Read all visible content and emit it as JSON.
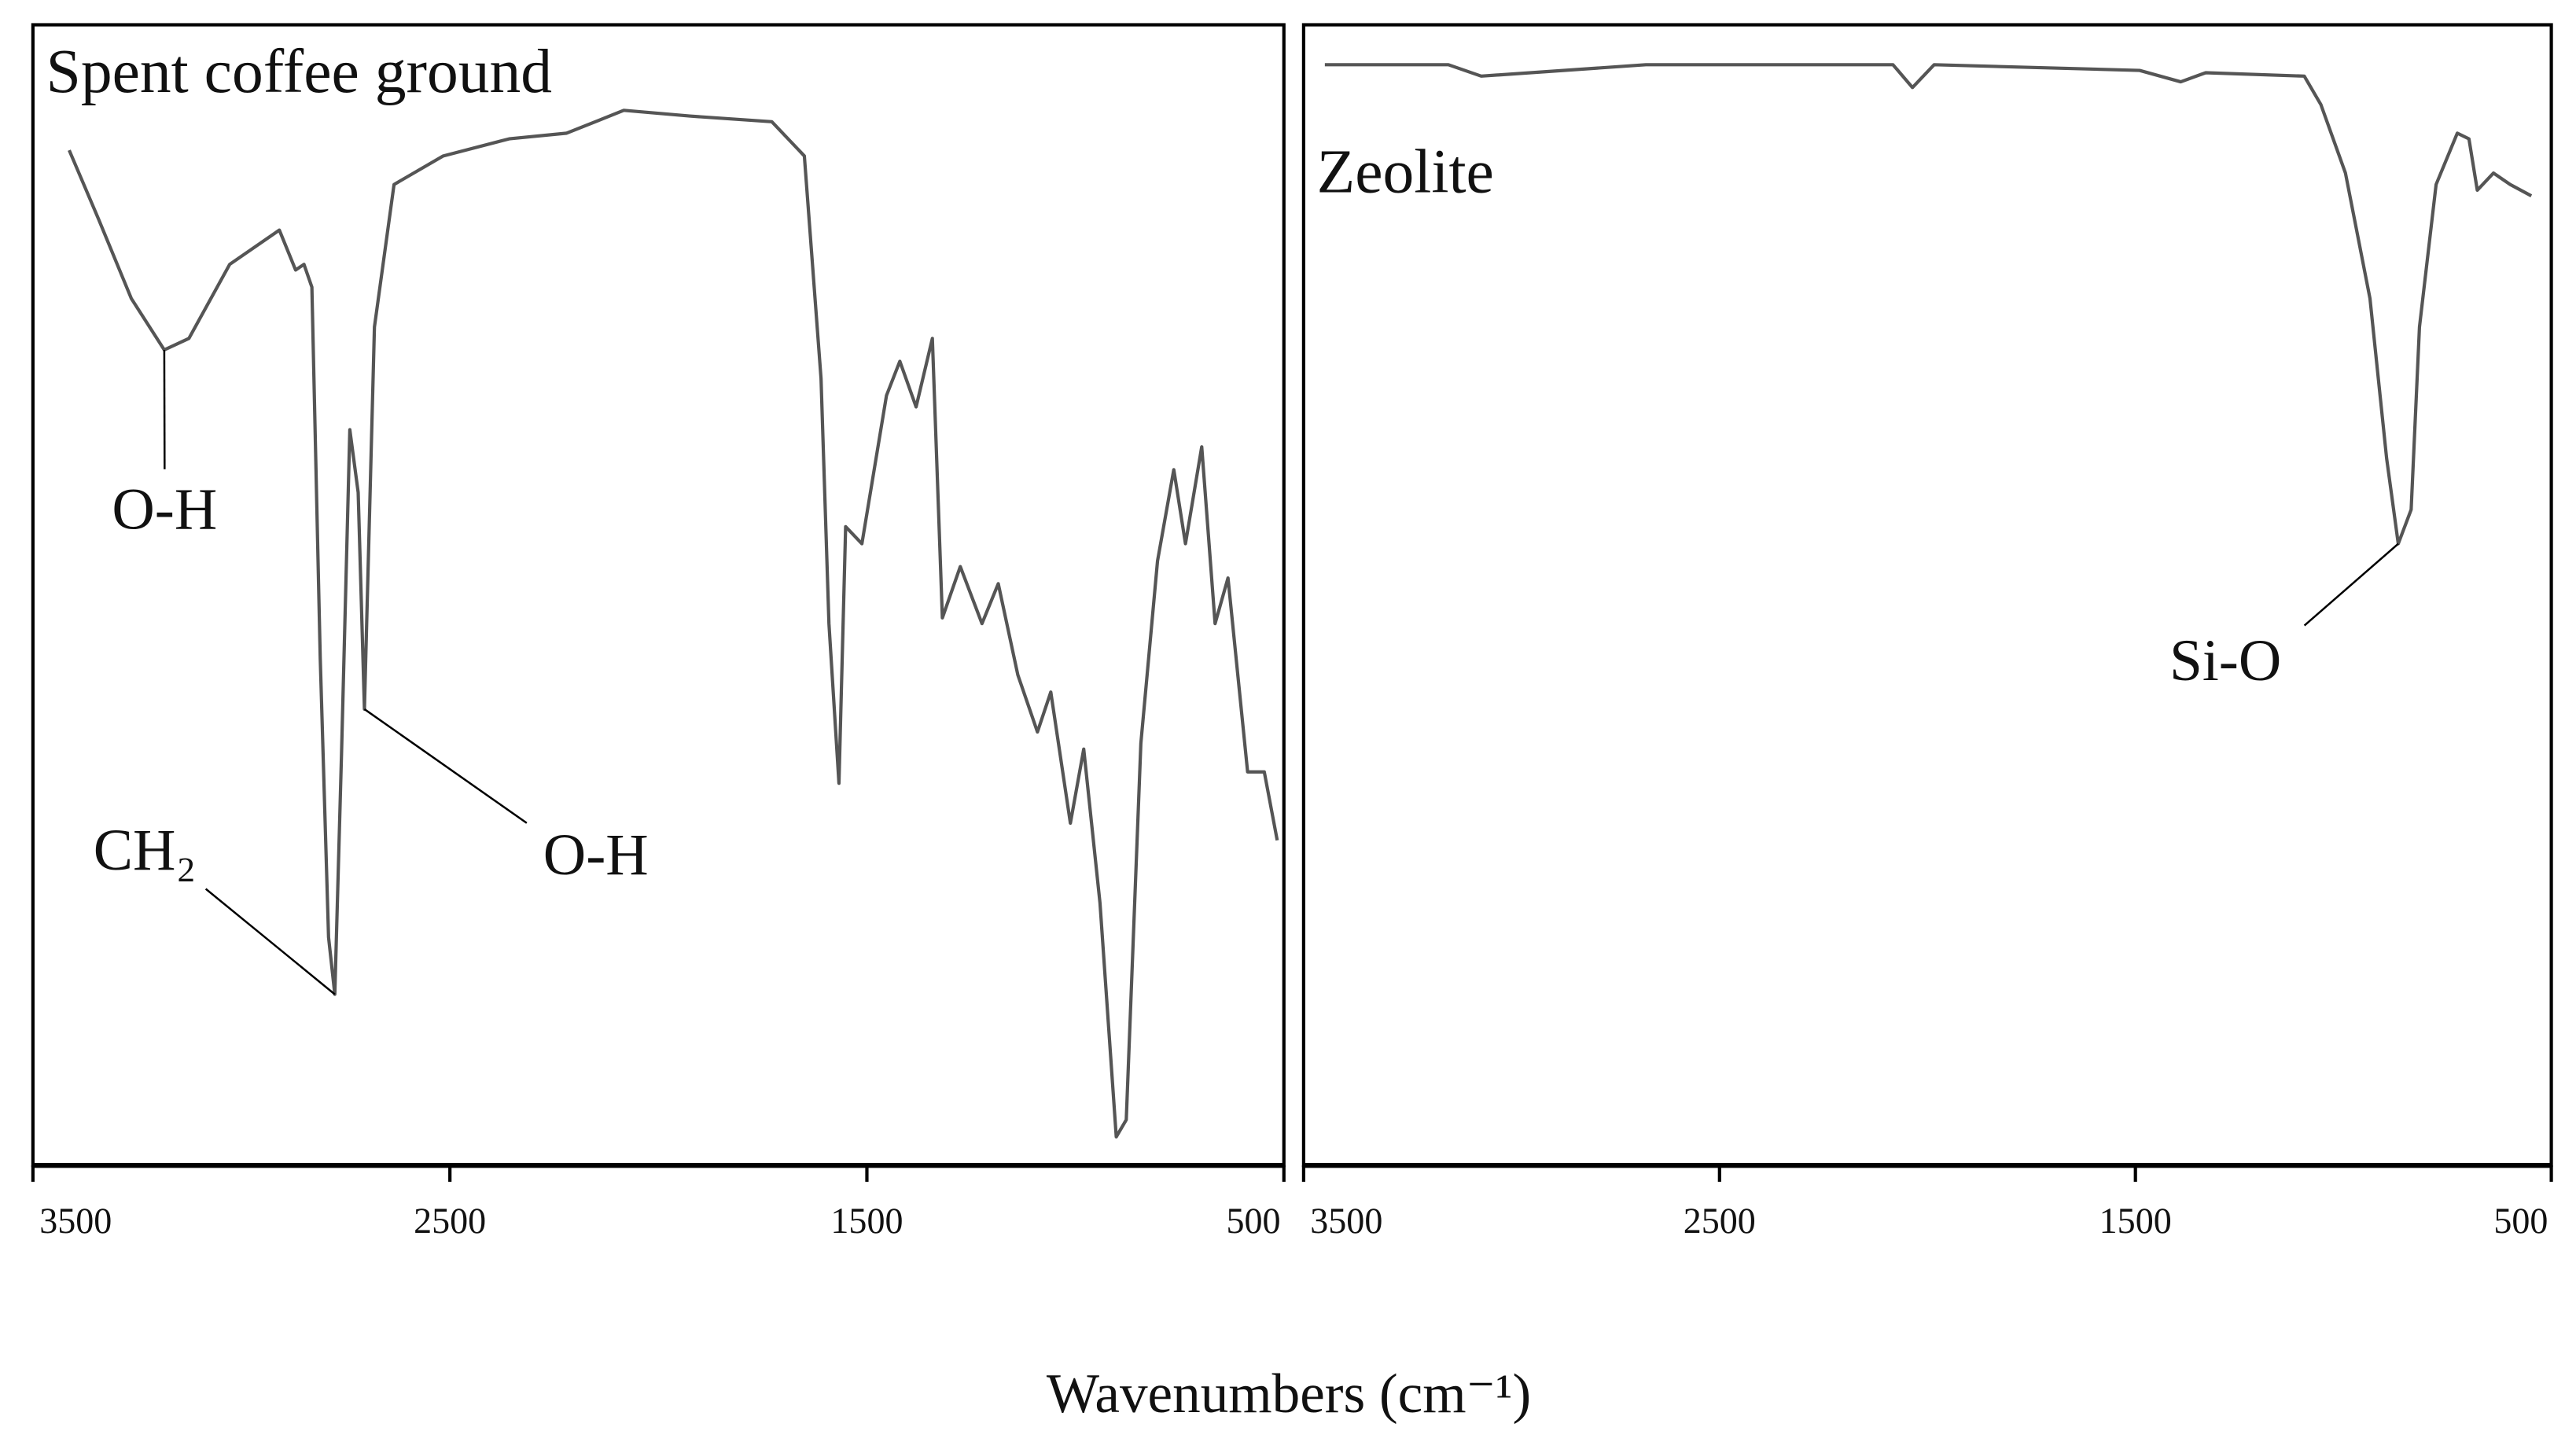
{
  "chart_data": [
    {
      "type": "line",
      "title": "Spent coffee ground",
      "color": "#555555",
      "x": [
        3413,
        3343,
        3264,
        3185,
        3126,
        3028,
        2909,
        2870,
        2850,
        2831,
        2811,
        2791,
        2776,
        2760,
        2740,
        2720,
        2705,
        2681,
        2634,
        2516,
        2358,
        2220,
        2083,
        1925,
        1728,
        1650,
        1610,
        1591,
        1567,
        1551,
        1512,
        1453,
        1421,
        1382,
        1343,
        1319,
        1276,
        1224,
        1185,
        1138,
        1091,
        1059,
        1012,
        980,
        941,
        902,
        878,
        843,
        803,
        764,
        736,
        697,
        665,
        634,
        587,
        547,
        516
      ],
      "values": [
        89,
        83,
        76,
        71.5,
        72.5,
        79,
        82,
        78.5,
        79,
        77,
        44.5,
        20,
        15,
        36,
        64.5,
        59,
        40,
        73.5,
        86,
        88.5,
        90,
        90.5,
        92.5,
        92,
        91.5,
        88.5,
        69,
        47.5,
        33.5,
        56,
        54.5,
        67.5,
        70.5,
        66.5,
        72.5,
        48,
        52.5,
        47.5,
        51,
        43,
        38,
        41.5,
        30,
        36.5,
        23,
        2.5,
        4,
        37,
        53,
        61,
        54.5,
        63,
        47.5,
        51.5,
        34.5,
        34.5,
        28.5
      ],
      "xlim": [
        3500,
        500
      ],
      "ylim": [
        0,
        100
      ],
      "xticks": [
        3500,
        2500,
        1500,
        500
      ],
      "annotations": [
        {
          "text": "O-H",
          "x": 3185,
          "y": 71.5
        },
        {
          "text": "CH₂",
          "x": 2776,
          "y": 15
        },
        {
          "text": "O-H",
          "x": 2705,
          "y": 40
        }
      ]
    },
    {
      "type": "line",
      "title": "Zeolite",
      "color": "#555555",
      "x": [
        3449,
        3152,
        3073,
        2677,
        2281,
        2083,
        2036,
        1984,
        1490,
        1391,
        1331,
        1094,
        1054,
        995,
        936,
        896,
        868,
        837,
        817,
        777,
        726,
        698,
        678,
        639,
        599,
        548
      ],
      "values": [
        96.5,
        96.5,
        95.5,
        96.5,
        96.5,
        96.5,
        94.5,
        96.5,
        96,
        95,
        95.8,
        95.5,
        93,
        87,
        76,
        62,
        54.5,
        57.5,
        73.5,
        86,
        90.5,
        90,
        85.5,
        87,
        86,
        85
      ],
      "xlim": [
        3500,
        500
      ],
      "ylim": [
        0,
        100
      ],
      "xticks": [
        3500,
        2500,
        1500,
        500
      ],
      "annotations": [
        {
          "text": "Si-O",
          "x": 868,
          "y": 54.5
        }
      ]
    }
  ],
  "shared": {
    "xlabel": "Wavenumbers (cm⁻¹)"
  }
}
